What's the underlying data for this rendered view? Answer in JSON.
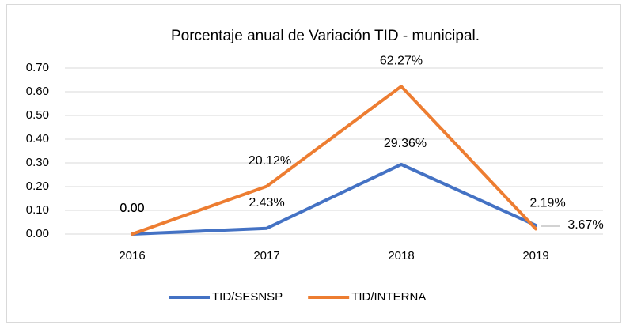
{
  "chart_data": {
    "type": "line",
    "title": "Porcentaje anual de Variación TID - municipal.",
    "categories": [
      "2016",
      "2017",
      "2018",
      "2019"
    ],
    "series": [
      {
        "name": "TID/SESNSP",
        "color": "#4472c4",
        "values": [
          0,
          0.0243,
          0.2936,
          0.0367
        ],
        "value_labels": [
          "0.00",
          "2.43%",
          "29.36%",
          "3.67%"
        ]
      },
      {
        "name": "TID/INTERNA",
        "color": "#ed7d31",
        "values": [
          0,
          0.2012,
          0.6227,
          0.0219
        ],
        "value_labels": [
          "0.00",
          "20.12%",
          "62.27%",
          "2.19%"
        ]
      }
    ],
    "ylim": [
      0,
      0.7
    ],
    "yticks": [
      {
        "value": 0,
        "label": "0.00"
      },
      {
        "value": 0.1,
        "label": "0.10"
      },
      {
        "value": 0.2,
        "label": "0.20"
      },
      {
        "value": 0.3,
        "label": "0.30"
      },
      {
        "value": 0.4,
        "label": "0.40"
      },
      {
        "value": 0.5,
        "label": "0.50"
      },
      {
        "value": 0.6,
        "label": "0.60"
      },
      {
        "value": 0.7,
        "label": "0.70"
      }
    ],
    "grid": true,
    "legend": "bottom"
  }
}
